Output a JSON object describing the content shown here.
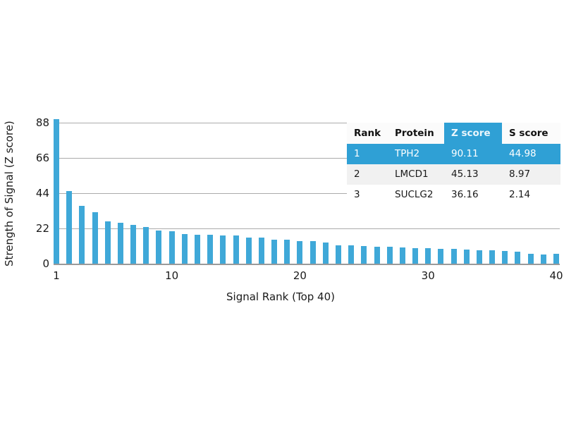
{
  "chart_data": {
    "type": "bar",
    "title": "",
    "xlabel": "Signal Rank (Top 40)",
    "ylabel": "Strength of Signal (Z score)",
    "x": [
      1,
      2,
      3,
      4,
      5,
      6,
      7,
      8,
      9,
      10,
      11,
      12,
      13,
      14,
      15,
      16,
      17,
      18,
      19,
      20,
      21,
      22,
      23,
      24,
      25,
      26,
      27,
      28,
      29,
      30,
      31,
      32,
      33,
      34,
      35,
      36,
      37,
      38,
      39,
      40
    ],
    "values": [
      90.11,
      45.13,
      36.16,
      32.2,
      26.2,
      25.5,
      24.1,
      23.1,
      20.6,
      20.2,
      18.4,
      18.0,
      17.9,
      17.6,
      17.4,
      16.5,
      16.4,
      15.0,
      14.8,
      14.3,
      14.0,
      13.3,
      11.6,
      11.3,
      10.9,
      10.6,
      10.5,
      10.0,
      9.6,
      9.5,
      9.4,
      9.2,
      8.9,
      8.5,
      8.2,
      7.9,
      7.4,
      6.1,
      5.7,
      6.3
    ],
    "ylim": [
      0,
      88
    ],
    "yticks": [
      0,
      22,
      44,
      66,
      88
    ],
    "xticks": [
      1,
      10,
      20,
      30,
      40
    ],
    "grid": "horizontal gridlines at y ticks",
    "legend": "none",
    "bar_color": "#3fa8d8",
    "gridline_color": "#ababab"
  },
  "table": {
    "columns": [
      "Rank",
      "Protein",
      "Z score",
      "S score"
    ],
    "highlight_color": "#2fa0d5",
    "rows": [
      {
        "rank": "1",
        "protein": "TPH2",
        "z": "90.11",
        "s": "44.98",
        "highlighted": true
      },
      {
        "rank": "2",
        "protein": "LMCD1",
        "z": "45.13",
        "s": "8.97",
        "highlighted": false
      },
      {
        "rank": "3",
        "protein": "SUCLG2",
        "z": "36.16",
        "s": "2.14",
        "highlighted": false
      }
    ]
  }
}
